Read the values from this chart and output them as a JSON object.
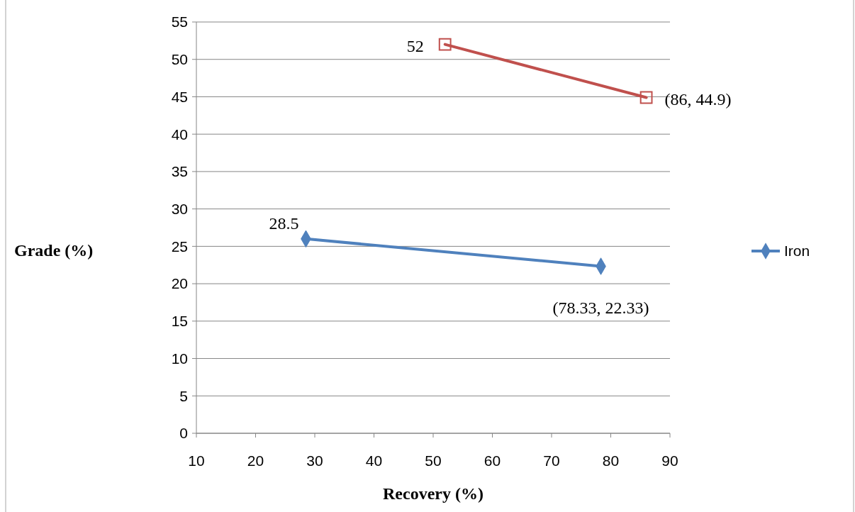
{
  "chart_data": {
    "type": "line",
    "xlabel": "Recovery (%)",
    "ylabel": "Grade (%)",
    "xlim": [
      10,
      90
    ],
    "xticks": [
      10,
      20,
      30,
      40,
      50,
      60,
      70,
      80,
      90
    ],
    "ylim": [
      0,
      55
    ],
    "yticks": [
      0,
      5,
      10,
      15,
      20,
      25,
      30,
      35,
      40,
      45,
      50,
      55
    ],
    "grid": "y",
    "legend": "right",
    "series": [
      {
        "name": "Iron",
        "color": "#4f81bd",
        "marker": "diamond",
        "x": [
          28.5,
          78.33
        ],
        "values": [
          26,
          22.33
        ]
      },
      {
        "color": "#c0504d",
        "marker": "square",
        "x": [
          52,
          86
        ],
        "values": [
          52,
          44.9
        ]
      }
    ],
    "annotations": [
      {
        "text": "28.5",
        "x": 28.5,
        "y": 26
      },
      {
        "text": "(78.33, 22.33)",
        "x": 78.33,
        "y": 22.33
      },
      {
        "text": "52",
        "x": 52,
        "y": 52
      },
      {
        "text": "(86, 44.9)",
        "x": 86,
        "y": 44.9
      }
    ]
  }
}
